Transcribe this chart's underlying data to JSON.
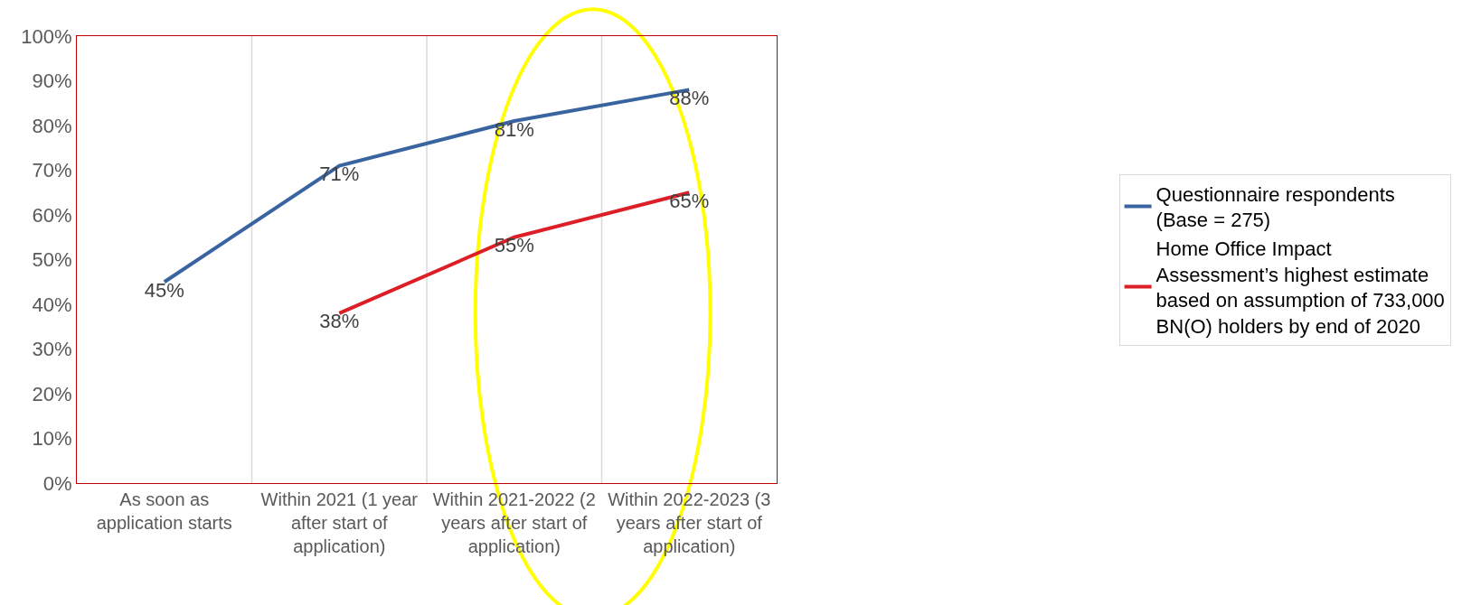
{
  "chart_data": {
    "type": "line",
    "categories": [
      "As soon as application starts",
      "Within 2021 (1 year after start of application)",
      "Within 2021-2022 (2 years after start of application)",
      "Within 2022-2023 (3 years after start of application)"
    ],
    "series": [
      {
        "name": "Questionnaire respondents (Base = 275)",
        "color": "#3a64a0",
        "values": [
          45,
          71,
          81,
          88
        ],
        "value_labels": [
          "45%",
          "71%",
          "81%",
          "88%"
        ]
      },
      {
        "name": "Home Office Impact Assessment’s highest estimate based on assumption of 733,000 BN(O) holders by end of 2020",
        "color": "#dc1f26",
        "values": [
          null,
          38,
          55,
          65
        ],
        "value_labels": [
          null,
          "38%",
          "55%",
          "65%"
        ]
      }
    ],
    "ylim": [
      0,
      100
    ],
    "yticks": [
      {
        "value": 0,
        "label": "0%"
      },
      {
        "value": 10,
        "label": "10%"
      },
      {
        "value": 20,
        "label": "20%"
      },
      {
        "value": 30,
        "label": "30%"
      },
      {
        "value": 40,
        "label": "40%"
      },
      {
        "value": 50,
        "label": "50%"
      },
      {
        "value": 60,
        "label": "60%"
      },
      {
        "value": 70,
        "label": "70%"
      },
      {
        "value": 80,
        "label": "80%"
      },
      {
        "value": 90,
        "label": "90%"
      },
      {
        "value": 100,
        "label": "100%"
      }
    ],
    "grid": "x",
    "legend": "right",
    "marker": "none",
    "line_style": "solid"
  }
}
